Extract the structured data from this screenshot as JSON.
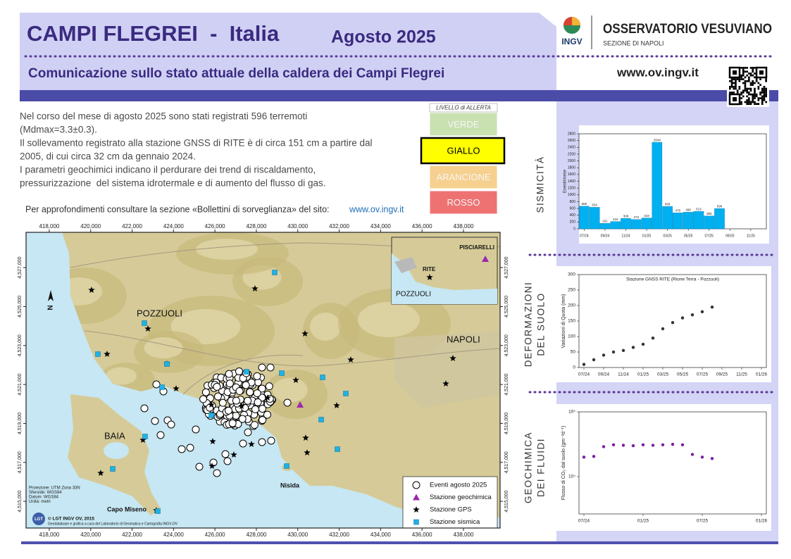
{
  "header": {
    "title": "CAMPI FLEGREI  -  Italia",
    "date": "Agosto 2025",
    "subtitle": "Comunicazione sullo stato attuale della caldera dei Campi Flegrei",
    "logo": "INGV",
    "institute": "OSSERVATORIO VESUVIANO",
    "section": "SEZIONE DI NAPOLI",
    "website": "www.ov.ingv.it"
  },
  "summary": {
    "lines": [
      "Nel corso del mese di agosto 2025 sono stati registrati 596 terremoti",
      "(Mdmax=3.3±0.3).",
      "Il sollevamento registrato alla stazione GNSS di RITE è di circa 151 cm a partire dal",
      "2005, di cui circa 32 cm da gennaio 2024.",
      "I parametri geochimici indicano il perdurare dei trend di riscaldamento,",
      "pressurizzazione  del sistema idrotermale e di aumento del flusso di gas."
    ],
    "more_info": "Per approfondimenti consultare la sezione «Bollettini di sorveglianza» del sito:",
    "link": "www.ov.ingv.it"
  },
  "alert": {
    "title": "LIVELLO di ALLERTA",
    "levels": [
      {
        "label": "VERDE",
        "color": "#c9e0b1"
      },
      {
        "label": "GIALLO",
        "color": "#ffff00",
        "active": true
      },
      {
        "label": "ARANCIONE",
        "color": "#f6d08e"
      },
      {
        "label": "ROSSO",
        "color": "#ef7272"
      }
    ]
  },
  "map": {
    "xlim": [
      416880,
      439770
    ],
    "ylim": [
      4513630,
      4528810
    ],
    "xticks": [
      {
        "value": 418000,
        "label": "418,000"
      },
      {
        "value": 420000,
        "label": "420,000"
      },
      {
        "value": 422000,
        "label": "422,000"
      },
      {
        "value": 424000,
        "label": "424,000"
      },
      {
        "value": 426000,
        "label": "426,000"
      },
      {
        "value": 428000,
        "label": "428,000"
      },
      {
        "value": 430000,
        "label": "430,000"
      },
      {
        "value": 432000,
        "label": "432,000"
      },
      {
        "value": 434000,
        "label": "434,000"
      },
      {
        "value": 436000,
        "label": "436,000"
      },
      {
        "value": 438000,
        "label": "438,000"
      }
    ],
    "yticks": [
      {
        "value": 4515000,
        "label": "4,515,000"
      },
      {
        "value": 4517000,
        "label": "4,517,000"
      },
      {
        "value": 4519000,
        "label": "4,519,000"
      },
      {
        "value": 4521000,
        "label": "4,521,000"
      },
      {
        "value": 4523000,
        "label": "4,523,000"
      },
      {
        "value": 4525000,
        "label": "4,525,000"
      },
      {
        "value": 4527000,
        "label": "4,527,000"
      }
    ],
    "places": [
      "POZZUOLI",
      "NAPOLI",
      "BAIA",
      "Capo Miseno",
      "Nisida"
    ],
    "inset_labels": [
      "PISCIARELLI",
      "RITE",
      "POZZUOLI"
    ],
    "north": "N",
    "legend": [
      "Eventi agosto 2025",
      "Stazione geochimica",
      "Stazione GPS",
      "Stazione sismica"
    ],
    "notes": [
      "Proiezione: UTM Zona 33N",
      "Sferoide: WGS84",
      "Datum: WGS84",
      "Unità: metri"
    ],
    "credits": [
      "© LGT INGV OV, 2015",
      "Geodatabase e grafica a cura del Laboratorio di Geomatica e Cartografia INGV-OV"
    ],
    "credit_logo": "LGT"
  },
  "chart_data": [
    {
      "type": "bar",
      "section": [
        "SISMICITÀ"
      ],
      "ylabel": "Eventi/mese",
      "categories": [
        "07/24",
        null,
        "09/24",
        null,
        "11/24",
        null,
        "01/25",
        null,
        "03/25",
        null,
        "05/25",
        null,
        "07/25",
        null,
        "09/25",
        null,
        "11/25",
        null
      ],
      "values": [
        666,
        634,
        161,
        215,
        308,
        273,
        319,
        2549,
        659,
        470,
        490,
        513,
        380,
        596,
        null,
        null,
        null,
        null
      ],
      "color": "#00b0f0",
      "ylim": [
        0,
        2800
      ],
      "yticks": [
        0,
        200,
        400,
        600,
        800,
        1000,
        1200,
        1400,
        1600,
        1800,
        2000,
        2200,
        2400,
        2600,
        2800
      ],
      "grid": false
    },
    {
      "type": "scatter",
      "section": [
        "DEFORMAZIONI",
        "DEL SUOLO"
      ],
      "title": "Stazione GNSS RITE (Rione Terra - Pozzuoli)",
      "ylabel": "Variazioni di Quota (mm)",
      "categories": [
        "07/24",
        null,
        "09/24",
        null,
        "11/24",
        null,
        "01/25",
        null,
        "03/25",
        null,
        "05/25",
        null,
        "07/25",
        null,
        "09/25",
        null,
        "11/25",
        null,
        "01/26"
      ],
      "values": [
        10,
        25,
        40,
        50,
        55,
        65,
        75,
        95,
        125,
        145,
        160,
        170,
        180,
        195,
        null,
        null,
        null,
        null,
        null
      ],
      "color": "#333333",
      "ylim": [
        0,
        300
      ],
      "yticks": [
        0,
        50,
        100,
        150,
        200,
        250,
        300
      ],
      "grid": false
    },
    {
      "type": "scatter",
      "section": [
        "GEOCHIMICA",
        "DEI FLUIDI"
      ],
      "ylabel": "Flusso di CO₂ dal suolo (gm⁻²d⁻¹)",
      "categories": [
        "07/24",
        null,
        null,
        null,
        null,
        null,
        "01/25",
        null,
        null,
        null,
        null,
        null,
        "07/25",
        null,
        null,
        null,
        null,
        null,
        "01/26"
      ],
      "values": [
        20000,
        20500,
        29000,
        31000,
        30500,
        30000,
        31000,
        30500,
        31000,
        31500,
        31000,
        22000,
        20000,
        19000,
        null,
        null,
        null,
        null,
        null
      ],
      "color": "#7b1fa2",
      "log": true,
      "ylim": [
        2650,
        100000
      ],
      "yticks": [
        {
          "value": 10000,
          "label": "10⁴"
        },
        {
          "value": 100000,
          "label": "10⁵"
        }
      ],
      "grid": false
    }
  ]
}
